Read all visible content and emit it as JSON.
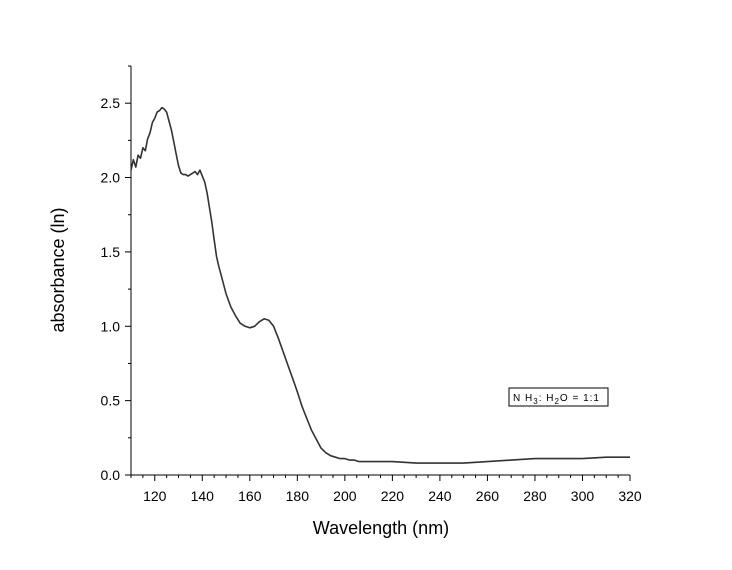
{
  "chart_data": {
    "type": "line",
    "xlabel": "Wavelength (nm)",
    "ylabel": "absorbance (ln)",
    "xlim": [
      110,
      320
    ],
    "ylim": [
      0,
      2.75
    ],
    "x_ticks": [
      120,
      140,
      160,
      180,
      200,
      220,
      240,
      260,
      280,
      300,
      320
    ],
    "y_ticks": [
      0.0,
      0.5,
      1.0,
      1.5,
      2.0,
      2.5
    ],
    "x_tick_labels": [
      "120",
      "140",
      "160",
      "180",
      "200",
      "220",
      "240",
      "260",
      "280",
      "300",
      "320"
    ],
    "y_tick_labels": [
      "0.0",
      "0.5",
      "1.0",
      "1.5",
      "2.0",
      "2.5"
    ],
    "annotation": {
      "lead": "N H",
      "sub1": "3",
      "mid": ": H",
      "sub2": "2",
      "tail": "O  =  1:1"
    },
    "grid": false,
    "color": "#333333",
    "series": [
      {
        "x": [
          110,
          111,
          112,
          113,
          114,
          115,
          116,
          117,
          118,
          119,
          120,
          121,
          122,
          123,
          124,
          125,
          126,
          127,
          128,
          129,
          130,
          131,
          132,
          133,
          134,
          135,
          136,
          137,
          138,
          139,
          140,
          141,
          142,
          143,
          144,
          145,
          146,
          147,
          148,
          150,
          152,
          154,
          156,
          158,
          160,
          162,
          164,
          166,
          168,
          170,
          172,
          174,
          176,
          178,
          180,
          182,
          184,
          186,
          188,
          190,
          192,
          194,
          196,
          198,
          200,
          202,
          204,
          206,
          208,
          210,
          214,
          220,
          230,
          240,
          250,
          260,
          270,
          280,
          290,
          300,
          310,
          320
        ],
        "y": [
          2.05,
          2.12,
          2.07,
          2.15,
          2.13,
          2.2,
          2.18,
          2.26,
          2.3,
          2.37,
          2.4,
          2.44,
          2.45,
          2.47,
          2.46,
          2.44,
          2.38,
          2.32,
          2.24,
          2.16,
          2.08,
          2.03,
          2.02,
          2.02,
          2.01,
          2.02,
          2.03,
          2.04,
          2.02,
          2.05,
          2.01,
          1.97,
          1.9,
          1.8,
          1.7,
          1.58,
          1.47,
          1.4,
          1.34,
          1.22,
          1.13,
          1.07,
          1.02,
          1.0,
          0.99,
          1.0,
          1.03,
          1.05,
          1.04,
          1.0,
          0.92,
          0.83,
          0.74,
          0.65,
          0.56,
          0.46,
          0.38,
          0.3,
          0.24,
          0.18,
          0.15,
          0.13,
          0.12,
          0.11,
          0.11,
          0.1,
          0.1,
          0.09,
          0.09,
          0.09,
          0.09,
          0.09,
          0.08,
          0.08,
          0.08,
          0.09,
          0.1,
          0.11,
          0.11,
          0.11,
          0.12,
          0.12
        ]
      }
    ]
  }
}
